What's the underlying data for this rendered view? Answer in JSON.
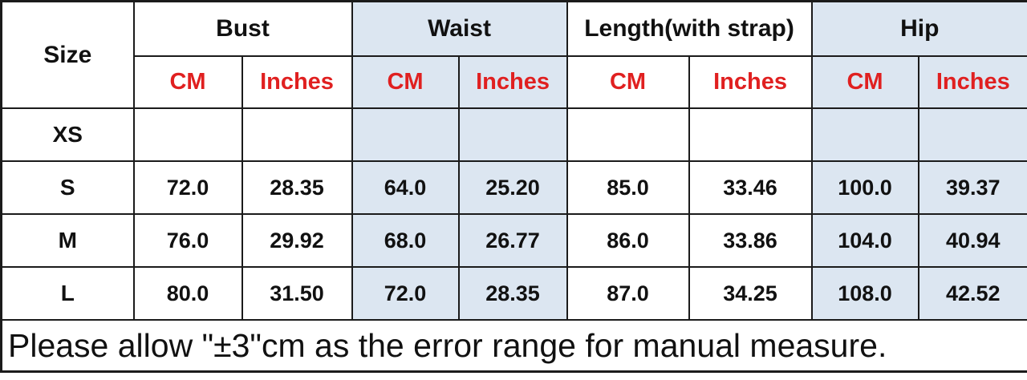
{
  "table": {
    "size_header": "Size",
    "groups": [
      {
        "label": "Bust",
        "tinted": false
      },
      {
        "label": "Waist",
        "tinted": true
      },
      {
        "label": "Length(with strap)",
        "tinted": false
      },
      {
        "label": "Hip",
        "tinted": true
      }
    ],
    "unit_headers": {
      "cm": "CM",
      "inches": "Inches"
    },
    "rows": [
      {
        "size": "XS",
        "values": [
          "",
          "",
          "",
          "",
          "",
          "",
          "",
          ""
        ]
      },
      {
        "size": "S",
        "values": [
          "72.0",
          "28.35",
          "64.0",
          "25.20",
          "85.0",
          "33.46",
          "100.0",
          "39.37"
        ]
      },
      {
        "size": "M",
        "values": [
          "76.0",
          "29.92",
          "68.0",
          "26.77",
          "86.0",
          "33.86",
          "104.0",
          "40.94"
        ]
      },
      {
        "size": "L",
        "values": [
          "80.0",
          "31.50",
          "72.0",
          "28.35",
          "87.0",
          "34.25",
          "108.0",
          "42.52"
        ]
      }
    ]
  },
  "footer": {
    "note": "Please allow \"±3\"cm as the error range for manual measure."
  },
  "colors": {
    "tint_background": "#dce6f1",
    "unit_text_red": "#e02020",
    "text_black": "#111111",
    "border_black": "#1b1b1b"
  }
}
